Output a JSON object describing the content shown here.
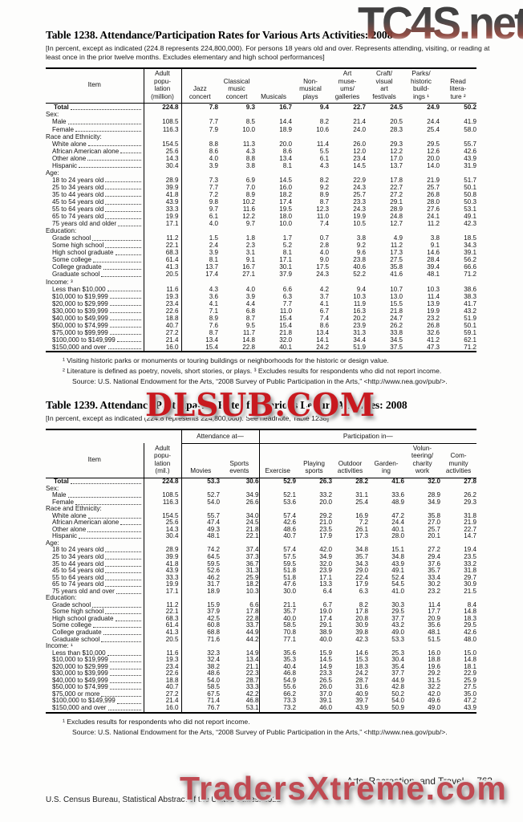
{
  "watermarks": {
    "top": "TC4S.net",
    "middle": "DLSUB.COM",
    "bottom": "TradersXtreme.com"
  },
  "footer": {
    "section_title": "Arts, Recreation, and Travel",
    "page_number": "763",
    "credit": "U.S. Census Bureau, Statistical Abstract of the United States: 2012"
  },
  "table1238": {
    "title": "Table 1238. Attendance/Participation Rates for Various Arts Activities: 2008",
    "headnote": "[In percent, except as indicated (224.8 represents 224,800,000). For persons 18 years old and over. Represents attending, visiting, or reading at least once in the prior twelve months. Excludes elementary and high school performances]",
    "stub_header": "Item",
    "columns": [
      [
        "Adult",
        "popu-",
        "lation",
        "(million)"
      ],
      [
        "Jazz",
        "concert"
      ],
      [
        "Classical",
        "music",
        "concert"
      ],
      [
        "Musicals"
      ],
      [
        "Non-",
        "musical",
        "plays"
      ],
      [
        "Art",
        "muse-",
        "ums/",
        "galleries"
      ],
      [
        "Craft/",
        "visual",
        "art",
        "festivals"
      ],
      [
        "Parks/",
        "historic",
        "build-",
        "ings ¹"
      ],
      [
        "Read",
        "litera-",
        "ture ²"
      ]
    ],
    "rows": [
      {
        "label": "Total",
        "type": "total",
        "values": [
          "224.8",
          "7.8",
          "9.3",
          "16.7",
          "9.4",
          "22.7",
          "24.5",
          "24.9",
          "50.2"
        ]
      },
      {
        "label": "Sex:",
        "type": "section"
      },
      {
        "label": "Male",
        "type": "item",
        "values": [
          "108.5",
          "7.7",
          "8.5",
          "14.4",
          "8.2",
          "21.4",
          "20.5",
          "24.4",
          "41.9"
        ]
      },
      {
        "label": "Female",
        "type": "item",
        "values": [
          "116.3",
          "7.9",
          "10.0",
          "18.9",
          "10.6",
          "24.0",
          "28.3",
          "25.4",
          "58.0"
        ]
      },
      {
        "label": "Race and Ethnicity:",
        "type": "section"
      },
      {
        "label": "White alone",
        "type": "item",
        "values": [
          "154.5",
          "8.8",
          "11.3",
          "20.0",
          "11.4",
          "26.0",
          "29.3",
          "29.5",
          "55.7"
        ]
      },
      {
        "label": "African American alone",
        "type": "item",
        "values": [
          "25.6",
          "8.6",
          "4.3",
          "8.6",
          "5.5",
          "12.0",
          "12.2",
          "12.6",
          "42.6"
        ]
      },
      {
        "label": "Other alone",
        "type": "item",
        "values": [
          "14.3",
          "4.0",
          "8.8",
          "13.4",
          "6.1",
          "23.4",
          "17.0",
          "20.0",
          "43.9"
        ]
      },
      {
        "label": "Hispanic",
        "type": "item",
        "values": [
          "30.4",
          "3.9",
          "3.8",
          "8.1",
          "4.3",
          "14.5",
          "13.7",
          "14.0",
          "31.9"
        ]
      },
      {
        "label": "Age:",
        "type": "section"
      },
      {
        "label": "18 to 24 years old",
        "type": "item",
        "values": [
          "28.9",
          "7.3",
          "6.9",
          "14.5",
          "8.2",
          "22.9",
          "17.8",
          "21.9",
          "51.7"
        ]
      },
      {
        "label": "25 to 34 years old",
        "type": "item",
        "values": [
          "39.9",
          "7.7",
          "7.0",
          "16.0",
          "9.2",
          "24.3",
          "22.7",
          "25.7",
          "50.1"
        ]
      },
      {
        "label": "35 to 44 years old",
        "type": "item",
        "values": [
          "41.8",
          "7.2",
          "8.9",
          "18.2",
          "8.9",
          "25.7",
          "27.2",
          "26.8",
          "50.8"
        ]
      },
      {
        "label": "45 to 54 years old",
        "type": "item",
        "values": [
          "43.9",
          "9.8",
          "10.2",
          "17.4",
          "8.7",
          "23.3",
          "29.1",
          "28.0",
          "50.3"
        ]
      },
      {
        "label": "55 to 64 years old",
        "type": "item",
        "values": [
          "33.3",
          "9.7",
          "11.6",
          "19.5",
          "12.3",
          "24.3",
          "28.9",
          "27.6",
          "53.1"
        ]
      },
      {
        "label": "65 to 74 years old",
        "type": "item",
        "values": [
          "19.9",
          "6.1",
          "12.2",
          "18.0",
          "11.0",
          "19.9",
          "24.8",
          "24.1",
          "49.1"
        ]
      },
      {
        "label": "75 years old and older",
        "type": "item",
        "values": [
          "17.1",
          "4.0",
          "9.7",
          "10.0",
          "7.4",
          "10.5",
          "12.7",
          "11.2",
          "42.3"
        ]
      },
      {
        "label": "Education:",
        "type": "section"
      },
      {
        "label": "Grade school",
        "type": "item",
        "values": [
          "11.2",
          "1.5",
          "1.8",
          "1.7",
          "0.7",
          "3.8",
          "4.9",
          "3.8",
          "18.5"
        ]
      },
      {
        "label": "Some high school",
        "type": "item",
        "values": [
          "22.1",
          "2.4",
          "2.3",
          "5.2",
          "2.8",
          "9.2",
          "11.2",
          "9.1",
          "34.3"
        ]
      },
      {
        "label": "High school graduate",
        "type": "item",
        "values": [
          "68.3",
          "3.9",
          "3.1",
          "8.1",
          "4.0",
          "9.6",
          "17.3",
          "14.6",
          "39.1"
        ]
      },
      {
        "label": "Some college",
        "type": "item",
        "values": [
          "61.4",
          "8.1",
          "9.1",
          "17.1",
          "9.0",
          "23.8",
          "27.5",
          "28.4",
          "56.2"
        ]
      },
      {
        "label": "College graduate",
        "type": "item",
        "values": [
          "41.3",
          "13.7",
          "16.7",
          "30.1",
          "17.5",
          "40.6",
          "35.8",
          "39.4",
          "66.6"
        ]
      },
      {
        "label": "Graduate school",
        "type": "item",
        "values": [
          "20.5",
          "17.4",
          "27.1",
          "37.9",
          "24.3",
          "52.2",
          "41.6",
          "48.1",
          "71.2"
        ]
      },
      {
        "label": "Income: ³",
        "type": "section"
      },
      {
        "label": "Less than $10,000",
        "type": "item",
        "values": [
          "11.6",
          "4.3",
          "4.0",
          "6.6",
          "4.2",
          "9.4",
          "10.7",
          "10.3",
          "38.6"
        ]
      },
      {
        "label": "$10,000 to $19,999",
        "type": "item",
        "values": [
          "19.3",
          "3.6",
          "3.9",
          "6.3",
          "3.7",
          "10.3",
          "13.0",
          "11.4",
          "38.3"
        ]
      },
      {
        "label": "$20,000 to $29,999",
        "type": "item",
        "values": [
          "23.4",
          "4.1",
          "4.4",
          "7.7",
          "4.1",
          "11.9",
          "15.5",
          "13.9",
          "41.7"
        ]
      },
      {
        "label": "$30,000 to $39,999",
        "type": "item",
        "values": [
          "22.6",
          "7.1",
          "6.8",
          "11.0",
          "6.7",
          "16.3",
          "21.8",
          "19.9",
          "43.2"
        ]
      },
      {
        "label": "$40,000 to $49,999",
        "type": "item",
        "values": [
          "18.8",
          "8.9",
          "8.7",
          "15.4",
          "7.4",
          "20.2",
          "24.7",
          "23.2",
          "51.9"
        ]
      },
      {
        "label": "$50,000 to $74,999",
        "type": "item",
        "values": [
          "40.7",
          "7.6",
          "9.5",
          "15.4",
          "8.6",
          "23.9",
          "26.2",
          "26.8",
          "50.1"
        ]
      },
      {
        "label": "$75,000 to $99,999",
        "type": "item",
        "values": [
          "27.2",
          "8.7",
          "11.7",
          "21.8",
          "13.4",
          "31.3",
          "33.8",
          "32.6",
          "59.1"
        ]
      },
      {
        "label": "$100,000 to $149,999",
        "type": "item",
        "values": [
          "21.4",
          "13.4",
          "14.8",
          "32.0",
          "14.1",
          "34.4",
          "34.5",
          "41.2",
          "62.1"
        ]
      },
      {
        "label": "$150,000 and over",
        "type": "item",
        "values": [
          "16.0",
          "15.4",
          "22.8",
          "40.1",
          "24.2",
          "51.9",
          "37.5",
          "47.3",
          "71.2"
        ]
      }
    ],
    "footnotes": [
      "¹ Visiting historic parks or monuments or touring buildings or neighborhoods for the historic or design value.",
      "² Literature is defined as poetry, novels, short stories, or plays. ³ Excludes results for respondents who did not report income."
    ],
    "source": "Source: U.S. National Endowment for the Arts, “2008 Survey of Public Participation in the Arts,” <http://www.nea.gov/pub/>."
  },
  "table1239": {
    "title": "Table 1239. Attendance/Participation Rates for Various Leisure Activities: 2008",
    "headnote": "[In percent, except as indicated (224.8 represents 224,800,000). See headnote, Table 1238]",
    "stub_header": "Item",
    "spanners": [
      {
        "label": "Attendance at—",
        "cols": 2
      },
      {
        "label": "Participation in—",
        "cols": 6
      }
    ],
    "columns": [
      [
        "Adult",
        "popu-",
        "lation",
        "(mil.)"
      ],
      [
        "Movies"
      ],
      [
        "Sports",
        "events"
      ],
      [
        "Exercise"
      ],
      [
        "Playing",
        "sports"
      ],
      [
        "Outdoor",
        "activities"
      ],
      [
        "Garden-",
        "ing"
      ],
      [
        "Volun-",
        "teering/",
        "charity",
        "work"
      ],
      [
        "Com-",
        "munity",
        "activities"
      ]
    ],
    "rows": [
      {
        "label": "Total",
        "type": "total",
        "values": [
          "224.8",
          "53.3",
          "30.6",
          "52.9",
          "26.3",
          "28.2",
          "41.6",
          "32.0",
          "27.8"
        ]
      },
      {
        "label": "Sex:",
        "type": "section"
      },
      {
        "label": "Male",
        "type": "item",
        "values": [
          "108.5",
          "52.7",
          "34.9",
          "52.1",
          "33.2",
          "31.1",
          "33.6",
          "28.9",
          "26.2"
        ]
      },
      {
        "label": "Female",
        "type": "item",
        "values": [
          "116.3",
          "54.0",
          "26.6",
          "53.6",
          "20.0",
          "25.4",
          "48.9",
          "34.9",
          "29.3"
        ]
      },
      {
        "label": "Race and Ethnicity:",
        "type": "section"
      },
      {
        "label": "White alone",
        "type": "item",
        "values": [
          "154.5",
          "55.7",
          "34.0",
          "57.4",
          "29.2",
          "16.9",
          "47.2",
          "35.8",
          "31.8"
        ]
      },
      {
        "label": "African American alone",
        "type": "item",
        "values": [
          "25.6",
          "47.4",
          "24.5",
          "42.6",
          "21.0",
          "7.2",
          "24.4",
          "27.0",
          "21.9"
        ]
      },
      {
        "label": "Other alone",
        "type": "item",
        "values": [
          "14.3",
          "49.3",
          "21.8",
          "48.6",
          "23.5",
          "26.1",
          "40.1",
          "25.7",
          "22.7"
        ]
      },
      {
        "label": "Hispanic",
        "type": "item",
        "values": [
          "30.4",
          "48.1",
          "22.1",
          "40.7",
          "17.9",
          "17.3",
          "28.0",
          "20.1",
          "14.7"
        ]
      },
      {
        "label": "Age:",
        "type": "section"
      },
      {
        "label": "18 to 24 years old",
        "type": "item",
        "values": [
          "28.9",
          "74.2",
          "37.4",
          "57.4",
          "42.0",
          "34.8",
          "15.1",
          "27.2",
          "19.4"
        ]
      },
      {
        "label": "25 to 34 years old",
        "type": "item",
        "values": [
          "39.9",
          "64.5",
          "37.3",
          "57.5",
          "34.9",
          "35.7",
          "34.8",
          "29.4",
          "23.5"
        ]
      },
      {
        "label": "35 to 44 years old",
        "type": "item",
        "values": [
          "41.8",
          "59.5",
          "36.7",
          "59.5",
          "32.0",
          "34.3",
          "43.9",
          "37.6",
          "33.2"
        ]
      },
      {
        "label": "45 to 54 years old",
        "type": "item",
        "values": [
          "43.9",
          "52.6",
          "31.3",
          "51.8",
          "23.9",
          "29.0",
          "49.1",
          "35.7",
          "31.8"
        ]
      },
      {
        "label": "55 to 64 years old",
        "type": "item",
        "values": [
          "33.3",
          "46.2",
          "25.9",
          "51.8",
          "17.1",
          "22.4",
          "52.4",
          "33.4",
          "29.7"
        ]
      },
      {
        "label": "65 to 74 years old",
        "type": "item",
        "values": [
          "19.9",
          "31.7",
          "18.2",
          "47.6",
          "13.3",
          "17.9",
          "54.5",
          "30.2",
          "30.9"
        ]
      },
      {
        "label": "75 years old and over",
        "type": "item",
        "values": [
          "17.1",
          "18.9",
          "10.3",
          "30.0",
          "6.4",
          "6.3",
          "41.0",
          "23.2",
          "21.5"
        ]
      },
      {
        "label": "Education:",
        "type": "section"
      },
      {
        "label": "Grade school",
        "type": "item",
        "values": [
          "11.2",
          "15.9",
          "6.6",
          "21.1",
          "6.7",
          "8.2",
          "30.3",
          "11.4",
          "8.4"
        ]
      },
      {
        "label": "Some high school",
        "type": "item",
        "values": [
          "22.1",
          "37.9",
          "17.8",
          "35.7",
          "19.0",
          "17.8",
          "29.5",
          "17.7",
          "14.8"
        ]
      },
      {
        "label": "High school graduate",
        "type": "item",
        "values": [
          "68.3",
          "42.5",
          "22.8",
          "40.0",
          "17.4",
          "20.8",
          "37.7",
          "20.9",
          "18.3"
        ]
      },
      {
        "label": "Some college",
        "type": "item",
        "values": [
          "61.4",
          "60.8",
          "33.7",
          "58.5",
          "29.1",
          "30.9",
          "43.2",
          "35.6",
          "29.5"
        ]
      },
      {
        "label": "College graduate",
        "type": "item",
        "values": [
          "41.3",
          "68.8",
          "44.9",
          "70.8",
          "38.9",
          "39.8",
          "49.0",
          "48.1",
          "42.6"
        ]
      },
      {
        "label": "Graduate school",
        "type": "item",
        "values": [
          "20.5",
          "71.6",
          "44.2",
          "77.1",
          "40.0",
          "42.3",
          "53.3",
          "51.5",
          "48.0"
        ]
      },
      {
        "label": "Income: ¹",
        "type": "section"
      },
      {
        "label": "Less than $10,000",
        "type": "item",
        "values": [
          "11.6",
          "32.3",
          "14.9",
          "35.6",
          "15.9",
          "14.6",
          "25.3",
          "16.0",
          "15.0"
        ]
      },
      {
        "label": "$10,000 to $19,999",
        "type": "item",
        "values": [
          "19.3",
          "32.4",
          "13.4",
          "35.3",
          "14.5",
          "15.3",
          "30.4",
          "18.8",
          "14.8"
        ]
      },
      {
        "label": "$20,000 to $29,999",
        "type": "item",
        "values": [
          "23.4",
          "38.2",
          "21.1",
          "40.4",
          "14.9",
          "18.3",
          "35.4",
          "19.6",
          "18.1"
        ]
      },
      {
        "label": "$30,000 to $39,999",
        "type": "item",
        "values": [
          "22.6",
          "48.6",
          "22.3",
          "46.8",
          "23.3",
          "24.2",
          "37.7",
          "29.2",
          "22.9"
        ]
      },
      {
        "label": "$40,000 to $49,999",
        "type": "item",
        "values": [
          "18.8",
          "54.0",
          "28.7",
          "54.9",
          "26.5",
          "28.7",
          "44.9",
          "31.5",
          "25.9"
        ]
      },
      {
        "label": "$50,000 to $74,999",
        "type": "item",
        "values": [
          "40.7",
          "58.5",
          "33.3",
          "55.6",
          "26.0",
          "31.6",
          "42.8",
          "32.2",
          "27.5"
        ]
      },
      {
        "label": "$75,000 or more",
        "type": "item",
        "values": [
          "27.2",
          "67.5",
          "42.2",
          "66.2",
          "37.0",
          "40.9",
          "50.2",
          "42.0",
          "35.0"
        ]
      },
      {
        "label": "$100,000 to $149,999",
        "type": "item",
        "values": [
          "21.4",
          "71.4",
          "46.8",
          "73.3",
          "39.1",
          "39.7",
          "54.0",
          "49.6",
          "47.2"
        ]
      },
      {
        "label": "$150,000 and over",
        "type": "item",
        "values": [
          "16.0",
          "76.7",
          "53.1",
          "73.2",
          "46.0",
          "43.9",
          "50.9",
          "49.0",
          "43.9"
        ]
      }
    ],
    "footnotes": [
      "¹ Excludes results for respondents who did not report income."
    ],
    "source": "Source: U.S. National Endowment for the Arts, “2008 Survey of Public Participation in the Arts,” <http://www.nea.gov/pub/>."
  }
}
